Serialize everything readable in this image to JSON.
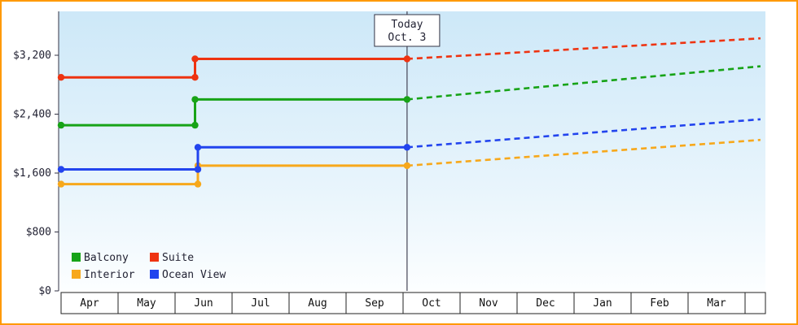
{
  "colors": {
    "border": "#ff9900",
    "plot_top": "#cde8f8",
    "plot_mid": "#e9f5fc",
    "plot_bottom": "#fcfeff",
    "axis": "#333344",
    "today_line": "#444455",
    "text": "#222233",
    "cell_border": "#222222"
  },
  "chart_data": {
    "type": "line",
    "title": "",
    "xlabel": "",
    "ylabel": "",
    "ylim": [
      0,
      3800
    ],
    "grid": false,
    "months": [
      "Apr",
      "May",
      "Jun",
      "Jul",
      "Aug",
      "Sep",
      "Oct",
      "Nov",
      "Dec",
      "Jan",
      "Feb",
      "Mar"
    ],
    "y_ticks": [
      {
        "label": "$0",
        "value": 0
      },
      {
        "label": "$800",
        "value": 800
      },
      {
        "label": "$1,600",
        "value": 1600
      },
      {
        "label": "$2,400",
        "value": 2400
      },
      {
        "label": "$3,200",
        "value": 3200
      }
    ],
    "today_marker": {
      "line1": "Today",
      "line2": "Oct. 3",
      "month_pos": 6.07
    },
    "series": [
      {
        "name": "Balcony",
        "color": "#17a317",
        "solid": [
          {
            "month": 0,
            "value": 2250
          },
          {
            "month": 2.35,
            "value": 2250
          },
          {
            "month": 2.35,
            "value": 2600
          },
          {
            "month": 6.07,
            "value": 2600
          }
        ],
        "dashed_end": {
          "month": 12.27,
          "value": 3050
        }
      },
      {
        "name": "Suite",
        "color": "#ee3311",
        "solid": [
          {
            "month": 0,
            "value": 2900
          },
          {
            "month": 2.35,
            "value": 2900
          },
          {
            "month": 2.35,
            "value": 3150
          },
          {
            "month": 6.07,
            "value": 3150
          }
        ],
        "dashed_end": {
          "month": 12.27,
          "value": 3430
        }
      },
      {
        "name": "Interior",
        "color": "#f7a81b",
        "solid": [
          {
            "month": 0,
            "value": 1450
          },
          {
            "month": 2.4,
            "value": 1450
          },
          {
            "month": 2.4,
            "value": 1700
          },
          {
            "month": 6.07,
            "value": 1700
          }
        ],
        "dashed_end": {
          "month": 12.27,
          "value": 2050
        }
      },
      {
        "name": "Ocean View",
        "color": "#2244ee",
        "solid": [
          {
            "month": 0,
            "value": 1650
          },
          {
            "month": 2.4,
            "value": 1650
          },
          {
            "month": 2.4,
            "value": 1950
          },
          {
            "month": 6.07,
            "value": 1950
          }
        ],
        "dashed_end": {
          "month": 12.27,
          "value": 2330
        }
      }
    ],
    "legend_rows": [
      [
        "Balcony",
        "Suite"
      ],
      [
        "Interior",
        "Ocean View"
      ]
    ],
    "legend_position": "bottom-left"
  }
}
